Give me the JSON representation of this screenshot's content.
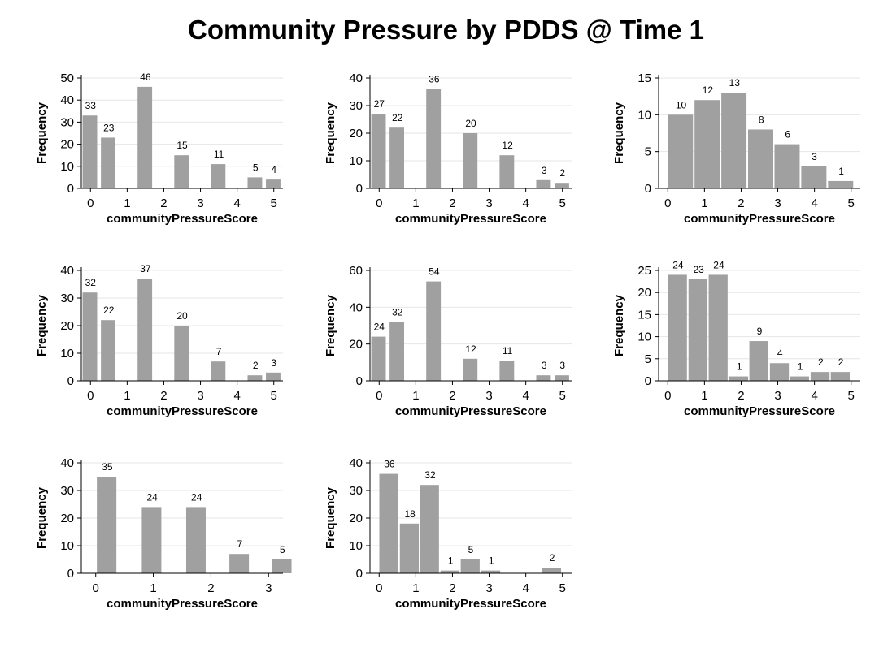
{
  "title": "Community Pressure by PDDS @ Time 1",
  "chart_data": [
    {
      "type": "bar",
      "xlabel": "communityPressureScore",
      "ylabel": "Frequency",
      "xlim": [
        -0.25,
        5.25
      ],
      "ylim": [
        0,
        50
      ],
      "xticks": [
        0,
        1,
        2,
        3,
        4,
        5
      ],
      "yticks": [
        0,
        10,
        20,
        30,
        40,
        50
      ],
      "bar_width": 0.43,
      "bar_color": "#a0a0a0",
      "grid": true,
      "x": [
        0,
        0.5,
        1.5,
        2.5,
        3.5,
        4.5,
        5
      ],
      "values": [
        33,
        23,
        46,
        15,
        11,
        5,
        4
      ]
    },
    {
      "type": "bar",
      "xlabel": "communityPressureScore",
      "ylabel": "Frequency",
      "xlim": [
        -0.25,
        5.25
      ],
      "ylim": [
        0,
        40
      ],
      "xticks": [
        0,
        1,
        2,
        3,
        4,
        5
      ],
      "yticks": [
        0,
        10,
        20,
        30,
        40
      ],
      "bar_width": 0.43,
      "bar_color": "#a0a0a0",
      "grid": true,
      "x": [
        0,
        0.5,
        1.5,
        2.5,
        3.5,
        4.5,
        5
      ],
      "values": [
        27,
        22,
        36,
        20,
        12,
        3,
        2
      ]
    },
    {
      "type": "bar",
      "xlabel": "communityPressureScore",
      "ylabel": "Frequency",
      "xlim": [
        -0.25,
        5.25
      ],
      "ylim": [
        0,
        15
      ],
      "xticks": [
        0,
        1,
        2,
        3,
        4,
        5
      ],
      "yticks": [
        0,
        5,
        10,
        15
      ],
      "bar_width": 0.72,
      "bar_color": "#a0a0a0",
      "grid": true,
      "x": [
        0.36,
        1.09,
        1.82,
        2.55,
        3.27,
        4.0,
        4.73
      ],
      "values": [
        10,
        12,
        13,
        8,
        6,
        3,
        1
      ]
    },
    {
      "type": "bar",
      "xlabel": "communityPressureScore",
      "ylabel": "Frequency",
      "xlim": [
        -0.25,
        5.25
      ],
      "ylim": [
        0,
        40
      ],
      "xticks": [
        0,
        1,
        2,
        3,
        4,
        5
      ],
      "yticks": [
        0,
        10,
        20,
        30,
        40
      ],
      "bar_width": 0.43,
      "bar_color": "#a0a0a0",
      "grid": true,
      "x": [
        0,
        0.5,
        1.5,
        2.5,
        3.5,
        4.5,
        5
      ],
      "values": [
        32,
        22,
        37,
        20,
        7,
        2,
        3
      ]
    },
    {
      "type": "bar",
      "xlabel": "communityPressureScore",
      "ylabel": "Frequency",
      "xlim": [
        -0.25,
        5.25
      ],
      "ylim": [
        0,
        60
      ],
      "xticks": [
        0,
        1,
        2,
        3,
        4,
        5
      ],
      "yticks": [
        0,
        20,
        40,
        60
      ],
      "bar_width": 0.43,
      "bar_color": "#a0a0a0",
      "grid": true,
      "x": [
        0,
        0.5,
        1.5,
        2.5,
        3.5,
        4.5,
        5
      ],
      "values": [
        24,
        32,
        54,
        12,
        11,
        3,
        3
      ]
    },
    {
      "type": "bar",
      "xlabel": "communityPressureScore",
      "ylabel": "Frequency",
      "xlim": [
        -0.25,
        5.25
      ],
      "ylim": [
        0,
        25
      ],
      "xticks": [
        0,
        1,
        2,
        3,
        4,
        5
      ],
      "yticks": [
        0,
        5,
        10,
        15,
        20,
        25
      ],
      "bar_width": 0.55,
      "bar_color": "#a0a0a0",
      "grid": true,
      "x": [
        0.28,
        0.84,
        1.39,
        1.95,
        2.5,
        3.06,
        3.61,
        4.17,
        4.72
      ],
      "values": [
        24,
        23,
        24,
        1,
        9,
        4,
        1,
        2,
        2
      ]
    },
    {
      "type": "bar",
      "xlabel": "communityPressureScore",
      "ylabel": "Frequency",
      "xlim": [
        -0.25,
        3.25
      ],
      "ylim": [
        0,
        40
      ],
      "xticks": [
        0,
        1,
        2,
        3
      ],
      "yticks": [
        0,
        10,
        20,
        30,
        40
      ],
      "bar_width": 0.36,
      "bar_color": "#a0a0a0",
      "grid": true,
      "x": [
        0.2,
        0.98,
        1.75,
        2.5,
        3.24
      ],
      "values": [
        35,
        24,
        24,
        7,
        5
      ]
    },
    {
      "type": "bar",
      "xlabel": "communityPressureScore",
      "ylabel": "Frequency",
      "xlim": [
        -0.25,
        5.25
      ],
      "ylim": [
        0,
        40
      ],
      "xticks": [
        0,
        1,
        2,
        3,
        4,
        5
      ],
      "yticks": [
        0,
        10,
        20,
        30,
        40
      ],
      "bar_width": 0.55,
      "bar_color": "#a0a0a0",
      "grid": true,
      "x": [
        0.28,
        0.84,
        1.39,
        1.95,
        2.5,
        3.06,
        4.72
      ],
      "values": [
        36,
        18,
        32,
        1,
        5,
        1,
        2
      ]
    }
  ]
}
